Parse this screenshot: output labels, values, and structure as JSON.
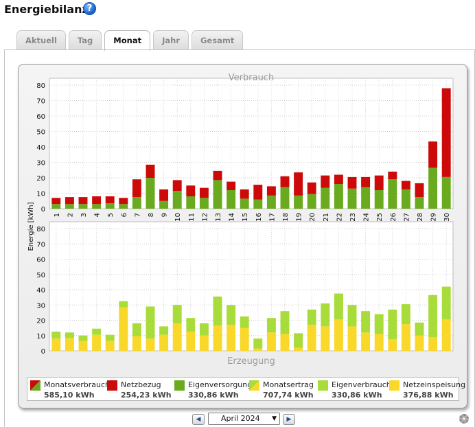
{
  "header": {
    "title": "Energiebilanz",
    "help_icon": "?"
  },
  "tabs": [
    {
      "label": "Aktuell",
      "active": false
    },
    {
      "label": "Tag",
      "active": false
    },
    {
      "label": "Monat",
      "active": true
    },
    {
      "label": "Jahr",
      "active": false
    },
    {
      "label": "Gesamt",
      "active": false
    }
  ],
  "chart_data": [
    {
      "type": "bar",
      "title": "Verbrauch",
      "ylabel": "Energie [kWh]",
      "ylim": [
        0,
        80
      ],
      "yticks": [
        0,
        10,
        20,
        30,
        40,
        50,
        60,
        70,
        80
      ],
      "grid": true,
      "stacked": true,
      "categories": [
        "1",
        "2",
        "3",
        "4",
        "5",
        "6",
        "7",
        "8",
        "9",
        "10",
        "11",
        "12",
        "13",
        "14",
        "15",
        "16",
        "17",
        "18",
        "19",
        "20",
        "21",
        "22",
        "23",
        "24",
        "25",
        "26",
        "27",
        "28",
        "29",
        "30"
      ],
      "series": [
        {
          "name": "Eigenversorgung",
          "color": "#6aaa1e",
          "values": [
            3,
            3,
            3,
            3,
            3.5,
            3,
            7.5,
            20,
            5,
            11.5,
            8,
            7,
            18.5,
            12,
            6.5,
            6,
            8.5,
            14,
            8.5,
            9.5,
            13.5,
            16,
            13,
            14,
            12,
            19,
            12.5,
            7.5,
            26.5,
            20.5
          ]
        },
        {
          "name": "Netzbezug",
          "color": "#cc0a0a",
          "values": [
            4,
            4.5,
            4.5,
            5,
            4.5,
            4,
            11.5,
            8.5,
            7.5,
            7,
            7,
            6.5,
            6,
            5.5,
            6,
            9.5,
            6,
            7,
            15,
            7.5,
            8,
            6,
            7.5,
            6.5,
            9.5,
            5,
            5.5,
            9,
            17,
            57.5
          ]
        }
      ]
    },
    {
      "type": "bar",
      "title": "Erzeugung",
      "ylabel": "Energie [kWh]",
      "ylim": [
        0,
        80
      ],
      "yticks": [
        0,
        10,
        20,
        30,
        40,
        50,
        60,
        70,
        80
      ],
      "grid": true,
      "stacked": true,
      "categories": [
        "1",
        "2",
        "3",
        "4",
        "5",
        "6",
        "7",
        "8",
        "9",
        "10",
        "11",
        "12",
        "13",
        "14",
        "15",
        "16",
        "17",
        "18",
        "19",
        "20",
        "21",
        "22",
        "23",
        "24",
        "25",
        "26",
        "27",
        "28",
        "29",
        "30"
      ],
      "series": [
        {
          "name": "Netzeinspeisung",
          "color": "#fad82a",
          "values": [
            8,
            8.5,
            6.5,
            10.5,
            6.5,
            28.5,
            9.5,
            8,
            10.5,
            18,
            12.5,
            10,
            16.5,
            17,
            15,
            1.5,
            12,
            11,
            2,
            17,
            16,
            20.5,
            16,
            12,
            11,
            7.5,
            17.5,
            10,
            9,
            20.5
          ]
        },
        {
          "name": "Eigenverbrauch",
          "color": "#a8dc3a",
          "values": [
            4.5,
            3.5,
            3.5,
            4,
            4,
            4,
            8.5,
            21,
            5.5,
            12,
            9,
            8,
            19,
            13,
            7.5,
            6.5,
            9.5,
            15,
            9.5,
            10,
            15,
            17,
            14,
            14,
            13,
            19.5,
            13,
            8.5,
            27.5,
            21.5
          ]
        }
      ]
    }
  ],
  "legend": [
    {
      "name": "Monatsverbrauch",
      "value": "585,10 kWh",
      "icon": "split-red-green",
      "color": "#cc0a0a",
      "color2": "#6aaa1e"
    },
    {
      "name": "Netzbezug",
      "value": "254,23 kWh",
      "icon": "solid",
      "color": "#cc0a0a"
    },
    {
      "name": "Eigenversorgung",
      "value": "330,86 kWh",
      "icon": "solid",
      "color": "#6aaa1e"
    },
    {
      "name": "Monatsertrag",
      "value": "707,74 kWh",
      "icon": "split-green-yellow",
      "color": "#a8dc3a",
      "color2": "#fad82a"
    },
    {
      "name": "Eigenverbrauch",
      "value": "330,86 kWh",
      "icon": "solid",
      "color": "#a8dc3a"
    },
    {
      "name": "Netzeinspeisung",
      "value": "376,88 kWh",
      "icon": "solid",
      "color": "#fad82a"
    }
  ],
  "nav": {
    "prev": "◀",
    "next": "▶",
    "month": "April 2024"
  }
}
